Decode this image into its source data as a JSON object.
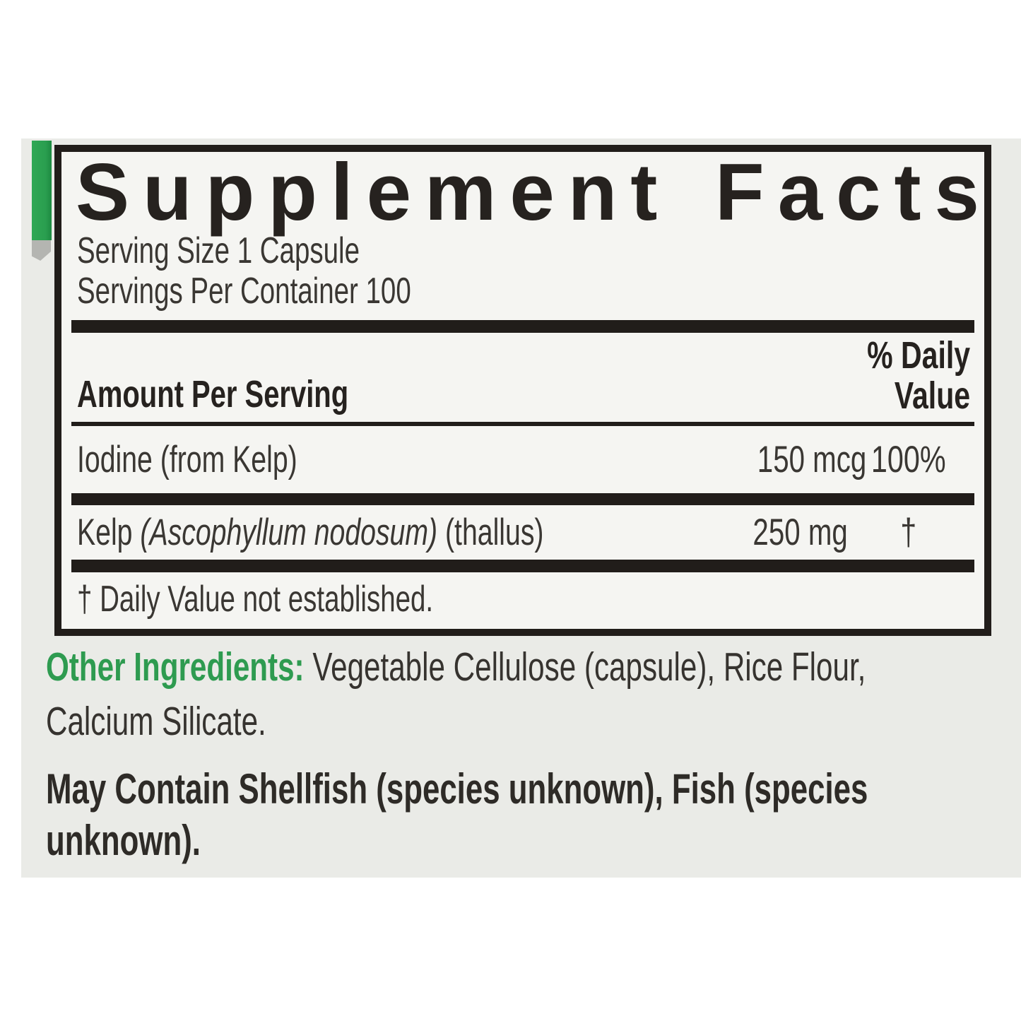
{
  "colors": {
    "accent_green": "#2E9B50",
    "rule_black": "#211D1A",
    "label_background": "#EAEBE7",
    "panel_background": "#F5F5F2"
  },
  "supplement_facts": {
    "title": "Supplement Facts",
    "serving_size": "Serving Size 1 Capsule",
    "servings_per_container": "Servings Per Container 100",
    "amount_header": "Amount Per Serving",
    "daily_value_header_line1": "% Daily",
    "daily_value_header_line2": "Value",
    "rows": [
      {
        "name": "Iodine (from Kelp)",
        "name_italic": "",
        "name_suffix": "",
        "amount": "150 mcg",
        "daily_value": "100%"
      },
      {
        "name": "Kelp ",
        "name_italic": "(Ascophyllum nodosum)",
        "name_suffix": " (thallus)",
        "amount": "250 mg",
        "daily_value": "†"
      }
    ],
    "footnote": "† Daily Value not established."
  },
  "other_ingredients": {
    "label": "Other Ingredients:",
    "line1_rest": " Vegetable Cellulose (capsule), Rice Flour,",
    "line2": "Calcium Silicate."
  },
  "allergen_statement": {
    "line1": "May Contain Shellfish (species unknown), Fish (species",
    "line2": "unknown)."
  }
}
